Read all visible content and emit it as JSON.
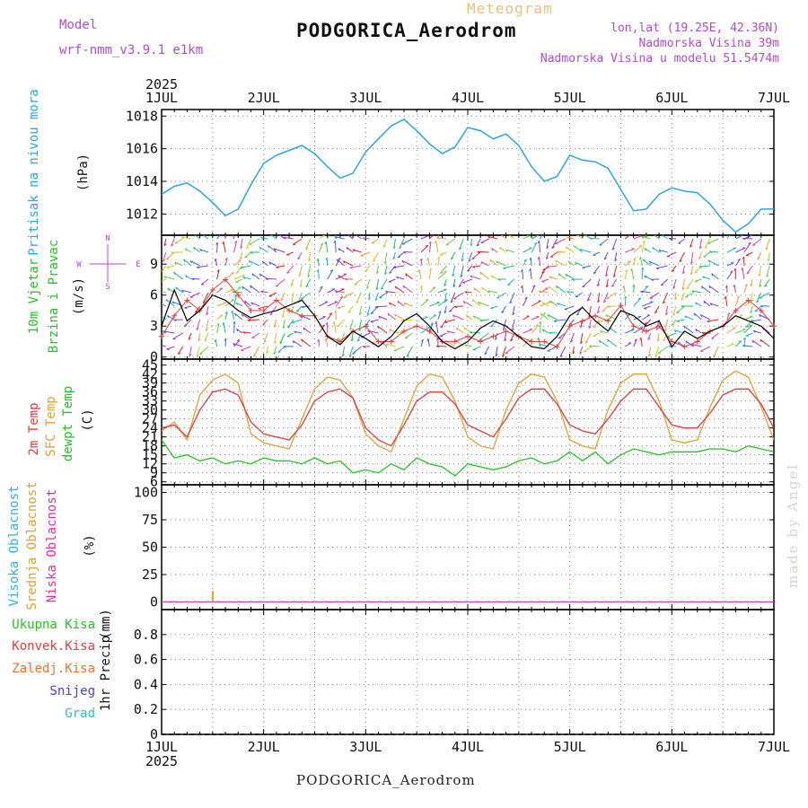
{
  "header": {
    "model_label": "Model",
    "model_name": "wrf-nmm_v3.9.1 e1km",
    "meteogram_label": "Meteogram",
    "station": "PODGORICA_Aerodrom",
    "lonlat": "lon,lat (19.25E, 42.36N)",
    "elevation": "Nadmorska Visina 39m",
    "model_elevation": "Nadmorska Visina u modelu 51.5474m"
  },
  "footer": {
    "station": "PODGORICA_Aerodrom",
    "made_by": "made by Angel"
  },
  "colors": {
    "pressure": "#2ba6e0",
    "wind_speed": "#000000",
    "gust": "#e83a3a",
    "t2m": "#e03a3a",
    "tsfc": "#e0a030",
    "dewpoint": "#22c422",
    "cloud_high": "#30b0e0",
    "cloud_mid": "#e0a030",
    "cloud_low": "#e030a0",
    "precip_total": "#22c422",
    "precip_conv": "#e83a3a",
    "precip_frz": "#f07030",
    "snow": "#4040e0",
    "hail": "#30c0c0",
    "grid": "#888888"
  },
  "chart_data": [
    {
      "type": "line",
      "year": "2025",
      "x_ticks": [
        "1JUL",
        "2JUL",
        "3JUL",
        "4JUL",
        "5JUL",
        "6JUL",
        "7JUL"
      ],
      "ylabel": "Pritisak na nivou mora",
      "unit": "(hPa)",
      "ylim": [
        1010.7,
        1018.4
      ],
      "y_ticks": [
        1012,
        1014,
        1016,
        1018
      ],
      "x_step_hours": 3,
      "series": [
        {
          "values": [
            1013.2,
            1013.7,
            1013.9,
            1013.4,
            1012.7,
            1011.9,
            1012.3,
            1013.8,
            1015.1,
            1015.6,
            1015.9,
            1016.2,
            1015.7,
            1014.9,
            1014.2,
            1014.5,
            1015.8,
            1016.6,
            1017.4,
            1017.8,
            1017.1,
            1016.3,
            1015.7,
            1016.1,
            1017.3,
            1017.1,
            1016.6,
            1016.9,
            1016.2,
            1014.9,
            1014.0,
            1014.3,
            1015.6,
            1015.3,
            1015.2,
            1014.8,
            1013.5,
            1012.2,
            1012.3,
            1013.2,
            1013.6,
            1013.4,
            1013.3,
            1012.6,
            1011.6,
            1010.9,
            1011.4,
            1012.3,
            1012.3
          ]
        }
      ]
    },
    {
      "type": "line",
      "ylabel": "10m Vjetar",
      "ylabel2": "Brzina i Pravac",
      "unit": "(m/s)",
      "ylim": [
        -0.2,
        11.8
      ],
      "y_ticks": [
        0,
        3,
        6,
        9
      ],
      "x_step_hours": 3,
      "compass": "N S W E",
      "series": [
        {
          "name": "wind_speed",
          "values": [
            3.0,
            6.5,
            3.5,
            4.5,
            6.0,
            5.5,
            4.5,
            3.8,
            4.2,
            4.5,
            5.0,
            5.5,
            4.0,
            2.0,
            1.2,
            2.5,
            1.8,
            1.0,
            2.0,
            3.5,
            4.2,
            3.0,
            1.5,
            0.8,
            1.5,
            2.8,
            3.5,
            3.0,
            2.0,
            1.0,
            0.8,
            2.0,
            4.0,
            4.8,
            3.5,
            2.5,
            4.5,
            4.0,
            3.0,
            3.5,
            1.0,
            2.5,
            1.8,
            2.5,
            3.0,
            4.0,
            3.5,
            3.0,
            1.8
          ]
        },
        {
          "name": "gust",
          "values": [
            2.0,
            4.0,
            5.5,
            4.5,
            6.5,
            7.5,
            6.0,
            4.5,
            4.5,
            5.5,
            4.5,
            4.0,
            4.0,
            2.0,
            1.5,
            2.5,
            3.0,
            1.5,
            1.5,
            2.5,
            3.0,
            2.5,
            1.5,
            1.5,
            2.0,
            1.5,
            2.0,
            2.5,
            2.0,
            1.5,
            1.5,
            1.0,
            3.0,
            3.5,
            4.0,
            3.5,
            5.0,
            3.0,
            2.5,
            3.0,
            1.5,
            1.0,
            1.5,
            2.5,
            3.0,
            4.5,
            5.5,
            4.5,
            3.0
          ]
        }
      ]
    },
    {
      "type": "line",
      "ylabel": "2m Temp",
      "ylabel2": "SFC Temp",
      "ylabel3": "dewpt Temp",
      "unit": "(C)",
      "ylim": [
        5,
        47
      ],
      "y_ticks": [
        6,
        9,
        12,
        15,
        18,
        21,
        24,
        27,
        30,
        33,
        36,
        39,
        42,
        45
      ],
      "x_step_hours": 3,
      "series": [
        {
          "name": "2m Temp",
          "values": [
            24,
            25,
            21,
            30,
            36,
            37,
            35,
            26,
            22,
            21,
            20,
            25,
            33,
            36,
            37,
            34,
            24,
            20,
            18,
            25,
            33,
            36,
            36,
            32,
            25,
            23,
            21,
            27,
            34,
            37,
            37,
            32,
            25,
            23,
            22,
            27,
            33,
            37,
            37,
            31,
            25,
            24,
            24,
            29,
            35,
            37,
            37,
            32,
            24
          ]
        },
        {
          "name": "SFC Temp",
          "values": [
            23,
            26,
            20,
            35,
            40,
            42,
            39,
            22,
            19,
            18,
            17,
            27,
            37,
            41,
            40,
            34,
            22,
            18,
            16,
            27,
            38,
            42,
            41,
            33,
            21,
            18,
            17,
            30,
            39,
            42,
            41,
            33,
            20,
            18,
            17,
            30,
            39,
            42,
            42,
            33,
            20,
            19,
            20,
            31,
            40,
            43,
            41,
            31,
            20
          ]
        },
        {
          "name": "dewpt Temp",
          "values": [
            20,
            14,
            15,
            13,
            14,
            12,
            13,
            12,
            14,
            13,
            13,
            12,
            14,
            12,
            13,
            9,
            10,
            9,
            12,
            10,
            14,
            12,
            11,
            8,
            12,
            11,
            10,
            11,
            13,
            14,
            12,
            13,
            16,
            13,
            16,
            12,
            15,
            17,
            16,
            15,
            16,
            16,
            16,
            17,
            17,
            16,
            18,
            17,
            16
          ]
        }
      ]
    },
    {
      "type": "line",
      "ylabel": "Visoka Oblacnost",
      "ylabel2": "Srednja Oblacnost",
      "ylabel3": "Niska Oblacnost",
      "unit": "(%)",
      "ylim": [
        -7,
        107
      ],
      "y_ticks": [
        0,
        25,
        50,
        75,
        100
      ],
      "mid_cloud_spike": {
        "day": 0.5,
        "value": 10
      }
    },
    {
      "type": "line",
      "ylabel": "1hr Precip",
      "unit": "(mm)",
      "ylim": [
        0,
        1.0
      ],
      "y_ticks": [
        0,
        0.2,
        0.4,
        0.6,
        0.8
      ],
      "legend": [
        "Ukupna Kisa",
        "Konvek.Kisa",
        "Zaledj.Kisa",
        "Snijeg",
        "Grad"
      ]
    }
  ]
}
